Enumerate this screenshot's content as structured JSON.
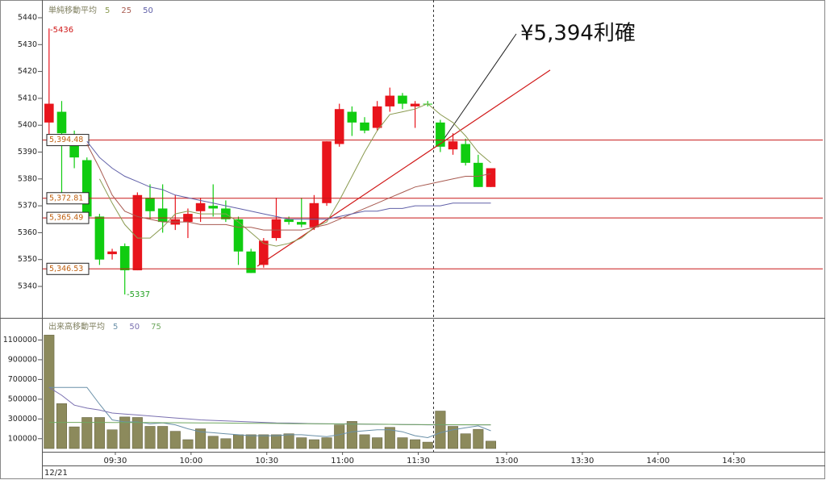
{
  "chart_data": [
    {
      "type": "candlestick",
      "legend_title": "単純移動平均",
      "x": [
        0,
        1,
        2,
        3,
        4,
        5,
        6,
        7,
        8,
        9,
        10,
        11,
        12,
        13,
        14,
        15,
        16,
        17,
        18,
        19,
        20,
        21,
        22,
        23,
        24,
        25,
        26,
        27,
        28,
        29,
        30,
        31,
        32,
        33,
        34,
        35
      ],
      "open": [
        5401,
        5405,
        5395,
        5387,
        5366,
        5352,
        5355,
        5346,
        5373,
        5369,
        5363,
        5364,
        5368,
        5370,
        5369,
        5365,
        5353,
        5348,
        5358,
        5365,
        5364,
        5362,
        5371,
        5393,
        5405,
        5401,
        5399,
        5407,
        5411,
        5407,
        5408,
        5401,
        5391,
        5393,
        5386,
        5377
      ],
      "high": [
        5436,
        5409,
        5398,
        5388,
        5367,
        5354,
        5356,
        5375,
        5378,
        5378,
        5374,
        5369,
        5373,
        5378,
        5372,
        5366,
        5354,
        5358,
        5373,
        5366,
        5373,
        5374,
        5394,
        5408,
        5407,
        5403,
        5409,
        5414,
        5412,
        5409,
        5409,
        5402,
        5397,
        5395,
        5389,
        5384
      ],
      "low": [
        5395,
        5375,
        5384,
        5365,
        5348,
        5350,
        5337,
        5346,
        5365,
        5360,
        5361,
        5358,
        5364,
        5366,
        5364,
        5348,
        5345,
        5347,
        5357,
        5363,
        5362,
        5361,
        5370,
        5392,
        5396,
        5397,
        5398,
        5405,
        5406,
        5399,
        5407,
        5390,
        5389,
        5385,
        5377,
        5377
      ],
      "close": [
        5408,
        5397,
        5388,
        5366,
        5350,
        5353,
        5346,
        5374,
        5368,
        5364,
        5365,
        5367,
        5371,
        5369,
        5365,
        5353,
        5345,
        5357,
        5365,
        5364,
        5363,
        5371,
        5394,
        5406,
        5401,
        5398,
        5407,
        5411,
        5408,
        5408,
        5408,
        5392,
        5394,
        5386,
        5377,
        5384
      ],
      "up_color": "#e8141c",
      "down_color": "#10cc10",
      "xlim": [
        -0.5,
        61.3
      ],
      "ylim": [
        5328.6,
        5445.1
      ],
      "yticks": [
        5340,
        5350,
        5360,
        5370,
        5380,
        5390,
        5400,
        5410,
        5420,
        5430,
        5440
      ],
      "series": [
        {
          "name": "5",
          "color": "#8a9a50",
          "values": [
            null,
            null,
            null,
            null,
            5380,
            5371,
            5363,
            5358,
            5358,
            5362,
            5367,
            5368,
            5367,
            5367,
            5367,
            5364,
            5360,
            5356,
            5355,
            5356,
            5358,
            5362,
            5364,
            5372,
            5381,
            5390,
            5398,
            5404,
            5405,
            5406,
            5408,
            5404,
            5401,
            5396,
            5390,
            5386
          ]
        },
        {
          "name": "25",
          "color": "#a85a50",
          "values": [
            null,
            null,
            null,
            5393,
            5384,
            5374,
            5368,
            5366,
            5365,
            5364,
            5364,
            5364,
            5363,
            5363,
            5363,
            5362,
            5362,
            5361,
            5361,
            5361,
            5361,
            5362,
            5363,
            5365,
            5367,
            5369,
            5371,
            5373,
            5375,
            5377,
            5378,
            5379,
            5380,
            5381,
            5381,
            5382
          ]
        },
        {
          "name": "50",
          "color": "#6060a8",
          "values": [
            null,
            null,
            null,
            5394,
            5388,
            5384,
            5381,
            5379,
            5377,
            5376,
            5374,
            5373,
            5372,
            5371,
            5370,
            5369,
            5368,
            5367,
            5366,
            5365,
            5365,
            5365,
            5365,
            5366,
            5367,
            5368,
            5368,
            5369,
            5369,
            5370,
            5370,
            5370,
            5371,
            5371,
            5371,
            5371
          ]
        }
      ],
      "levels": [
        {
          "value": 5394.48,
          "label": "5,394.48"
        },
        {
          "value": 5372.81,
          "label": "5,372.81"
        },
        {
          "value": 5365.49,
          "label": "5,365.49"
        },
        {
          "value": 5346.53,
          "label": "5,346.53"
        }
      ],
      "level_color": "#c81818",
      "trendline": {
        "x": [
          16.5,
          39.7
        ],
        "y": [
          5347.5,
          5420.5
        ],
        "color": "#d01818"
      },
      "annotations": [
        "-5436",
        "-5337",
        "¥5,394利確"
      ]
    },
    {
      "type": "bar",
      "legend_title": "出来高移動平均",
      "x": [
        0,
        1,
        2,
        3,
        4,
        5,
        6,
        7,
        8,
        9,
        10,
        11,
        12,
        13,
        14,
        15,
        16,
        17,
        18,
        19,
        20,
        21,
        22,
        23,
        24,
        25,
        26,
        27,
        28,
        29,
        30,
        31,
        32,
        33,
        34,
        35
      ],
      "values": [
        1150000,
        455000,
        220000,
        315000,
        315000,
        190000,
        320000,
        315000,
        225000,
        225000,
        175000,
        90000,
        200000,
        125000,
        100000,
        140000,
        140000,
        140000,
        140000,
        150000,
        110000,
        90000,
        110000,
        240000,
        275000,
        140000,
        110000,
        215000,
        110000,
        90000,
        65000,
        380000,
        225000,
        150000,
        195000,
        75000
      ],
      "color": "#8c8a5c",
      "xlim": [
        -0.5,
        61.3
      ],
      "ylim": [
        0,
        1300000
      ],
      "yticks": [
        100000,
        300000,
        500000,
        700000,
        900000,
        1100000
      ],
      "xticks": [
        {
          "value": 5.25,
          "label": "09:30"
        },
        {
          "value": 11.25,
          "label": "10:00"
        },
        {
          "value": 17.25,
          "label": "10:30"
        },
        {
          "value": 23.25,
          "label": "11:00"
        },
        {
          "value": 29.25,
          "label": "11:30"
        },
        {
          "value": 36.25,
          "label": "13:00"
        },
        {
          "value": 42.25,
          "label": "13:30"
        },
        {
          "value": 48.25,
          "label": "14:00"
        },
        {
          "value": 54.25,
          "label": "14:30"
        }
      ],
      "date_label": "12/21",
      "series": [
        {
          "name": "5",
          "color": "#6a90a8",
          "values": [
            620000,
            620000,
            620000,
            620000,
            450000,
            290000,
            270000,
            270000,
            250000,
            260000,
            240000,
            200000,
            170000,
            160000,
            150000,
            140000,
            130000,
            130000,
            130000,
            140000,
            140000,
            130000,
            120000,
            140000,
            170000,
            180000,
            190000,
            190000,
            170000,
            130000,
            110000,
            160000,
            190000,
            210000,
            230000,
            180000
          ]
        },
        {
          "name": "50",
          "color": "#7a70b0",
          "values": [
            620000,
            540000,
            440000,
            410000,
            390000,
            360000,
            350000,
            340000,
            330000,
            320000,
            310000,
            300000,
            290000,
            285000,
            280000,
            275000,
            270000,
            265000,
            260000,
            258000,
            255000,
            252000,
            250000,
            250000,
            250000,
            248000,
            246000,
            245000,
            244000,
            242000,
            240000,
            240000,
            240000,
            240000,
            240000,
            240000
          ]
        },
        {
          "name": "75",
          "color": "#70a860",
          "values": [
            265000,
            265000,
            265000,
            265000,
            265000,
            264000,
            264000,
            263000,
            263000,
            262000,
            262000,
            261000,
            260000,
            259000,
            258000,
            257000,
            256000,
            255000,
            254000,
            253000,
            252000,
            251000,
            250000,
            249000,
            248000,
            247000,
            246000,
            245000,
            244000,
            243000,
            242000,
            242000,
            241000,
            241000,
            240000,
            240000
          ]
        }
      ]
    }
  ]
}
